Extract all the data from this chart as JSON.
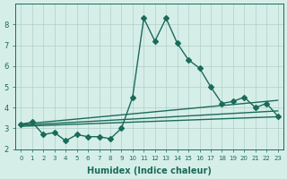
{
  "xlabel": "Humidex (Indice chaleur)",
  "ylabel": "",
  "background_color": "#d6eee8",
  "grid_color": "#b0cfc8",
  "line_color": "#1a6b5a",
  "x": [
    0,
    1,
    2,
    3,
    4,
    5,
    6,
    7,
    8,
    9,
    10,
    11,
    12,
    13,
    14,
    15,
    16,
    17,
    18,
    19,
    20,
    21,
    22,
    23
  ],
  "y_main": [
    3.2,
    3.3,
    2.7,
    2.8,
    2.4,
    2.7,
    2.6,
    2.6,
    2.5,
    3.0,
    4.5,
    8.3,
    7.2,
    8.3,
    7.1,
    6.3,
    5.9,
    5.0,
    4.2,
    4.3,
    4.5,
    4.0,
    4.2,
    3.6
  ],
  "y_line1": [
    3.2,
    3.25,
    3.3,
    3.35,
    3.4,
    3.45,
    3.5,
    3.55,
    3.6,
    3.65,
    3.7,
    3.75,
    3.8,
    3.85,
    3.9,
    3.95,
    4.0,
    4.05,
    4.1,
    4.15,
    4.2,
    4.25,
    4.3,
    4.35
  ],
  "y_line2": [
    3.15,
    3.18,
    3.21,
    3.24,
    3.27,
    3.3,
    3.33,
    3.36,
    3.39,
    3.42,
    3.45,
    3.48,
    3.51,
    3.54,
    3.57,
    3.6,
    3.63,
    3.66,
    3.69,
    3.72,
    3.75,
    3.78,
    3.81,
    3.84
  ],
  "y_line3": [
    3.1,
    3.12,
    3.14,
    3.16,
    3.18,
    3.2,
    3.22,
    3.24,
    3.26,
    3.28,
    3.3,
    3.32,
    3.34,
    3.36,
    3.38,
    3.4,
    3.42,
    3.44,
    3.46,
    3.48,
    3.5,
    3.52,
    3.54,
    3.56
  ],
  "ylim": [
    2.0,
    9.0
  ],
  "yticks": [
    2,
    3,
    4,
    5,
    6,
    7,
    8
  ],
  "xtick_labels": [
    "0",
    "1",
    "2",
    "3",
    "4",
    "5",
    "6",
    "7",
    "8",
    "9",
    "10",
    "11",
    "12",
    "13",
    "14",
    "15",
    "16",
    "17",
    "18",
    "19",
    "20",
    "21",
    "22",
    "23"
  ],
  "marker": "D",
  "markersize": 3,
  "linewidth": 1.0,
  "tick_fontsize": 6,
  "label_fontsize": 7
}
